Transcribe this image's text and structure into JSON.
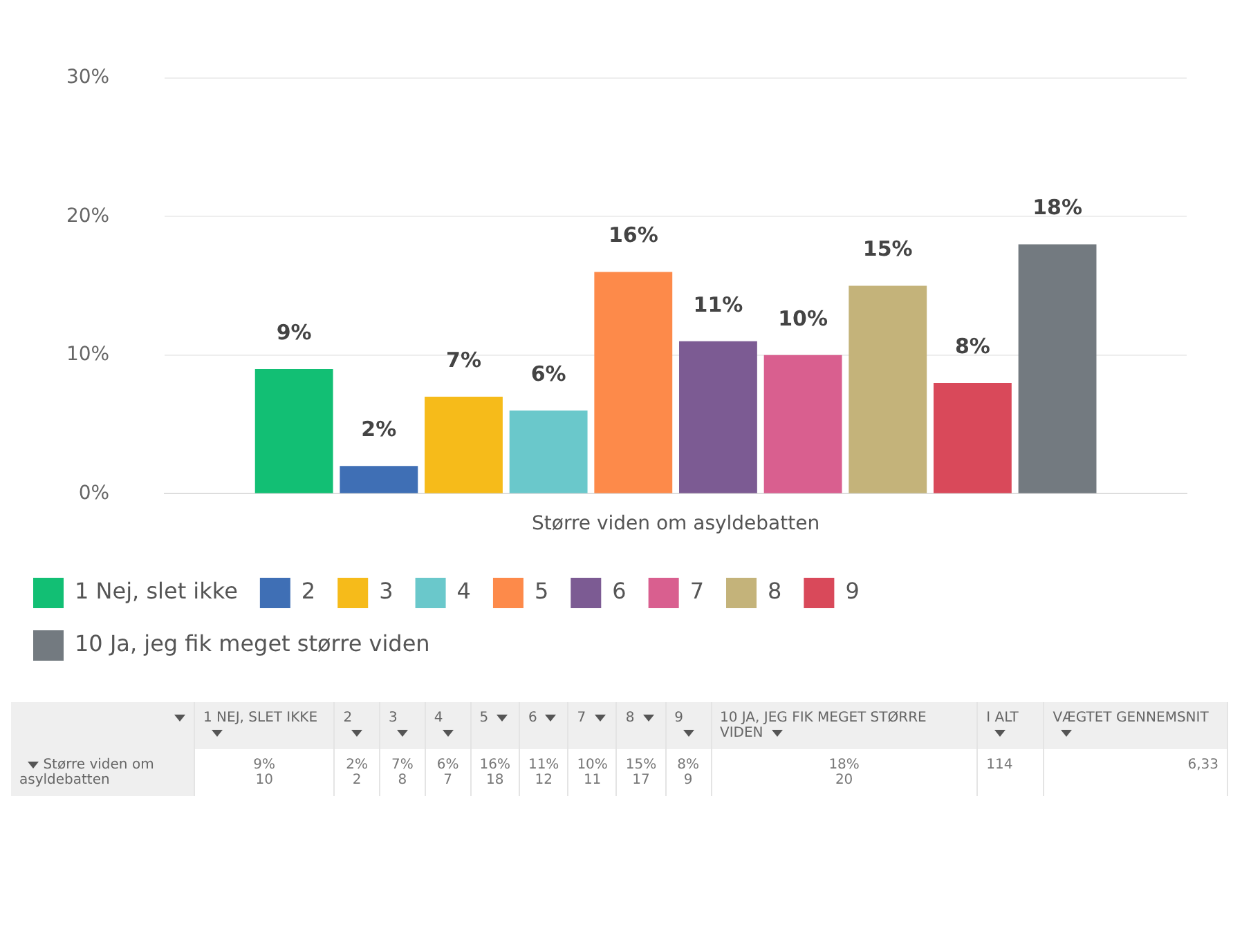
{
  "chart_data": {
    "type": "bar",
    "categories": [
      "Større viden om asyldebatten"
    ],
    "series": [
      {
        "name": "1 Nej, slet ikke",
        "color": "#12bf74",
        "values": [
          9
        ],
        "value_labels": [
          "9%"
        ]
      },
      {
        "name": "2",
        "color": "#3f6fb5",
        "values": [
          2
        ],
        "value_labels": [
          "2%"
        ]
      },
      {
        "name": "3",
        "color": "#f6bb1a",
        "values": [
          7
        ],
        "value_labels": [
          "7%"
        ]
      },
      {
        "name": "4",
        "color": "#6ac8cb",
        "values": [
          6
        ],
        "value_labels": [
          "6%"
        ]
      },
      {
        "name": "5",
        "color": "#fd8a4a",
        "values": [
          16
        ],
        "value_labels": [
          "16%"
        ]
      },
      {
        "name": "6",
        "color": "#7c5b93",
        "values": [
          11
        ],
        "value_labels": [
          "11%"
        ]
      },
      {
        "name": "7",
        "color": "#d95f8f",
        "values": [
          10
        ],
        "value_labels": [
          "10%"
        ]
      },
      {
        "name": "8",
        "color": "#c4b37a",
        "values": [
          15
        ],
        "value_labels": [
          "15%"
        ]
      },
      {
        "name": "9",
        "color": "#d9495a",
        "values": [
          8
        ],
        "value_labels": [
          "8%"
        ]
      },
      {
        "name": "10 Ja, jeg fik meget større viden",
        "color": "#737a80",
        "values": [
          18
        ],
        "value_labels": [
          "18%"
        ]
      }
    ],
    "ylim": [
      0,
      30
    ],
    "yticks": [
      {
        "value": 0,
        "label": "0%"
      },
      {
        "value": 10,
        "label": "10%"
      },
      {
        "value": 20,
        "label": "20%"
      },
      {
        "value": 30,
        "label": "30%"
      }
    ],
    "grid": "y",
    "legend": "bottom",
    "annotations": [
      "1 NEJ, SLET IKKE",
      "2",
      "3",
      "4",
      "5",
      "6",
      "7",
      "8",
      "9",
      "10 JA, JEG FIK MEGET STØRRE VIDEN",
      "I ALT",
      "VÆGTET GENNEMSNIT",
      "Større viden om asyldebatten",
      "10",
      "2",
      "8",
      "7",
      "18",
      "12",
      "11",
      "17",
      "9",
      "20",
      "114",
      "6,33"
    ]
  }
}
